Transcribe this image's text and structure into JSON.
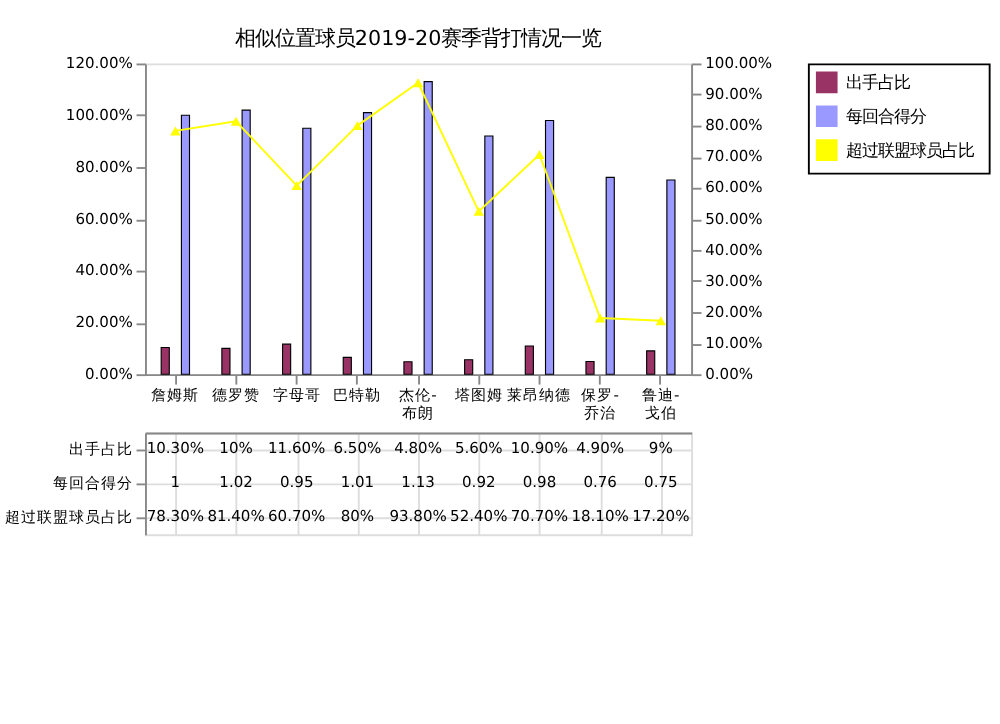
{
  "chart_data": {
    "type": "bar",
    "title": "相似位置球员2019-20赛季背打情况一览",
    "categories": [
      "詹姆斯",
      "德罗赞",
      "字母哥",
      "巴特勒",
      "杰伦-布朗",
      "塔图姆",
      "莱昂纳德",
      "保罗-乔治",
      "鲁迪-戈伯"
    ],
    "series": [
      {
        "name": "出手占比",
        "color": "#993366",
        "values": [
          0.103,
          0.1,
          0.116,
          0.065,
          0.048,
          0.056,
          0.109,
          0.049,
          0.09
        ],
        "value_labels": [
          "10.30%",
          "10%",
          "11.60%",
          "6.50%",
          "4.80%",
          "5.60%",
          "10.90%",
          "4.90%",
          "9%"
        ]
      },
      {
        "name": "每回合得分",
        "color": "#9999ff",
        "values": [
          1,
          1.02,
          0.95,
          1.01,
          1.13,
          0.92,
          0.98,
          0.76,
          0.75
        ],
        "value_labels": [
          "1",
          "1.02",
          "0.95",
          "1.01",
          "1.13",
          "0.92",
          "0.98",
          "0.76",
          "0.75"
        ]
      },
      {
        "name": "超过联盟球员占比",
        "type": "line",
        "axis": "y2",
        "color": "#ffff00",
        "marker": "triangle",
        "values": [
          78.3,
          81.4,
          60.7,
          80,
          93.8,
          52.4,
          70.7,
          18.1,
          17.2
        ],
        "value_labels": [
          "78.30%",
          "81.40%",
          "60.70%",
          "80%",
          "93.80%",
          "52.40%",
          "70.70%",
          "18.10%",
          "17.20%"
        ]
      }
    ],
    "ylim": [
      0,
      1.2
    ],
    "yticks": [
      {
        "value": 0,
        "label": "0.00%"
      },
      {
        "value": 0.2,
        "label": "20.00%"
      },
      {
        "value": 0.4,
        "label": "40.00%"
      },
      {
        "value": 0.6,
        "label": "60.00%"
      },
      {
        "value": 0.8,
        "label": "80.00%"
      },
      {
        "value": 1,
        "label": "100.00%"
      },
      {
        "value": 1.2,
        "label": "120.00%"
      }
    ],
    "y2lim": [
      0,
      100
    ],
    "y2ticks": [
      {
        "value": 0,
        "label": "0.00%"
      },
      {
        "value": 10,
        "label": "10.00%"
      },
      {
        "value": 20,
        "label": "20.00%"
      },
      {
        "value": 30,
        "label": "30.00%"
      },
      {
        "value": 40,
        "label": "40.00%"
      },
      {
        "value": 50,
        "label": "50.00%"
      },
      {
        "value": 60,
        "label": "60.00%"
      },
      {
        "value": 70,
        "label": "70.00%"
      },
      {
        "value": 80,
        "label": "80.00%"
      },
      {
        "value": 90,
        "label": "90.00%"
      },
      {
        "value": 100,
        "label": "100.00%"
      }
    ],
    "grid": false,
    "legend": "right",
    "data_labels": true
  }
}
